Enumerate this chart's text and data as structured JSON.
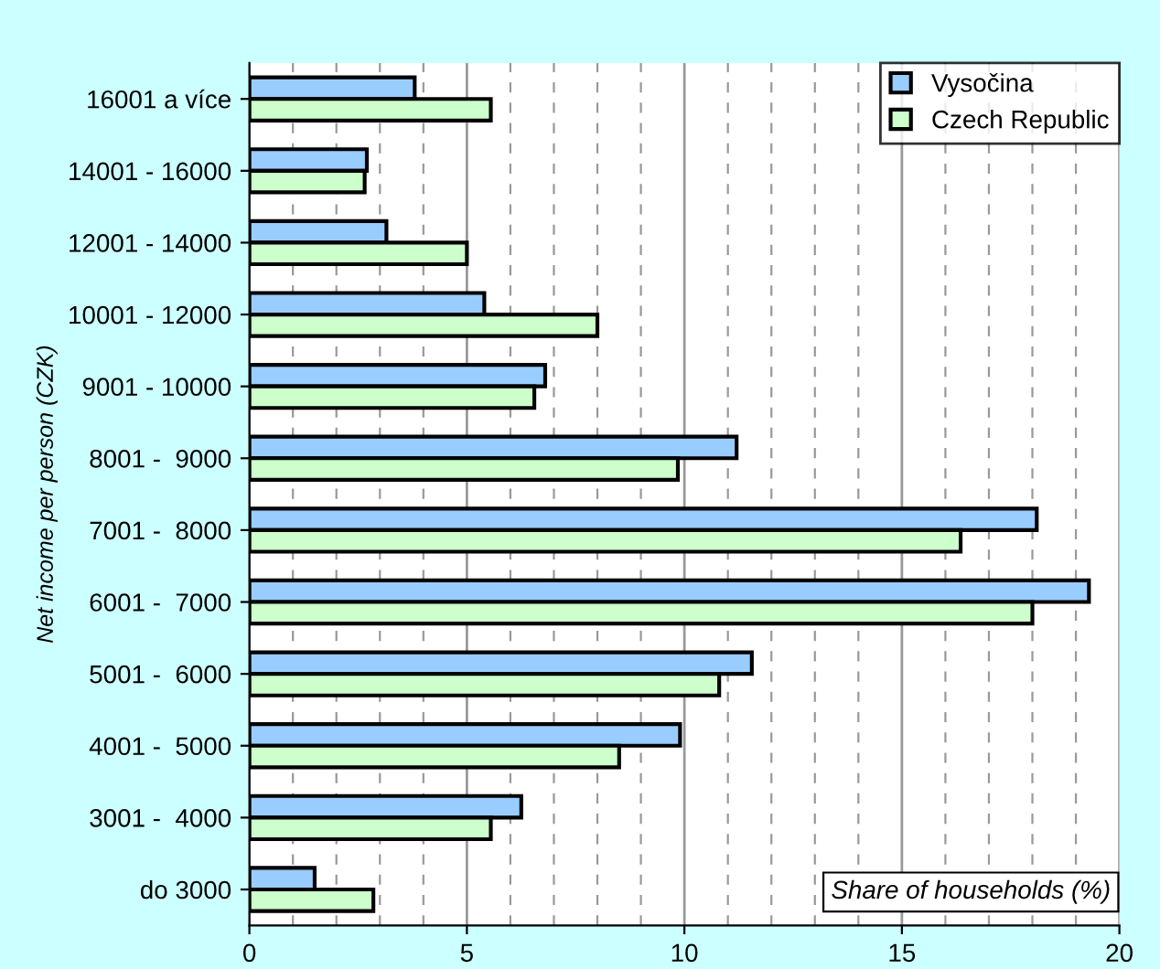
{
  "chart_data": {
    "type": "bar",
    "orientation": "horizontal",
    "xlabel": "Share of households (%)",
    "ylabel": "Net income per person (CZK)",
    "categories": [
      "16001 a více",
      "14001 - 16000",
      "12001 - 14000",
      "10001 - 12000",
      "9001 - 10000",
      "8001 -  9000",
      "7001 -  8000",
      "6001 -  7000",
      "5001 -  6000",
      "4001 -  5000",
      "3001 -  4000",
      "do 3000"
    ],
    "series": [
      {
        "name": "Vysočina",
        "color": "#99ccff",
        "values": [
          3.8,
          2.7,
          3.15,
          5.4,
          6.8,
          11.2,
          18.1,
          19.3,
          11.55,
          9.9,
          6.25,
          1.5
        ]
      },
      {
        "name": "Czech Republic",
        "color": "#ccffcc",
        "values": [
          5.55,
          2.65,
          5.0,
          8.0,
          6.55,
          9.85,
          16.35,
          18.0,
          10.8,
          8.5,
          5.55,
          2.85
        ]
      }
    ],
    "xlim": [
      0,
      20
    ],
    "xticks": [
      0,
      5,
      10,
      15,
      20
    ],
    "grid": "x",
    "legend": "top right"
  }
}
